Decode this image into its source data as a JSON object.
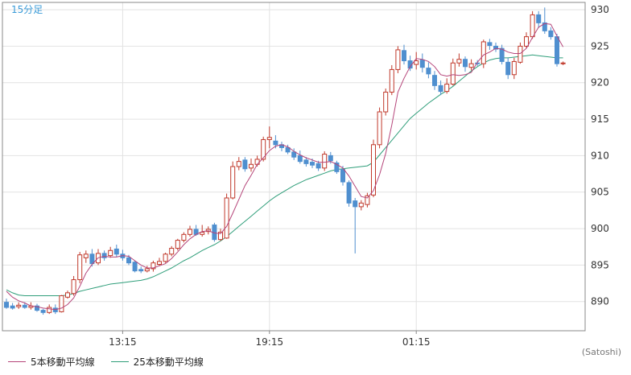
{
  "colors": {
    "up": "#c0392b",
    "down": "#4f8fcf",
    "ma5": "#b5457a",
    "ma25": "#2f9e7a",
    "grid": "#e2e2e2",
    "axis": "#888888",
    "label": "#333333",
    "timeframe": "#3a9bd8"
  },
  "chart_data": {
    "type": "candlestick",
    "timeframe_label": "15分足",
    "credit": "(Satoshi)",
    "legend": [
      {
        "name": "5本移動平均線",
        "color": "#b5457a"
      },
      {
        "name": "25本移動平均線",
        "color": "#2f9e7a"
      }
    ],
    "ylim": [
      886,
      931
    ],
    "y_ticks": [
      890,
      895,
      900,
      905,
      910,
      915,
      920,
      925,
      930
    ],
    "x_ticks": [
      {
        "label": "13:15",
        "index": 19
      },
      {
        "label": "19:15",
        "index": 43
      },
      {
        "label": "01:15",
        "index": 67
      }
    ],
    "candles": [
      [
        889.9,
        889.2,
        890.4,
        889.0
      ],
      [
        889.4,
        889.1,
        889.8,
        888.9
      ],
      [
        889.3,
        889.5,
        889.9,
        889.0
      ],
      [
        889.5,
        889.2,
        889.9,
        889.0
      ],
      [
        889.2,
        889.4,
        889.9,
        888.9
      ],
      [
        889.4,
        888.8,
        889.7,
        888.6
      ],
      [
        888.8,
        888.5,
        889.0,
        888.2
      ],
      [
        888.5,
        889.2,
        889.6,
        888.3
      ],
      [
        889.1,
        888.6,
        889.6,
        888.3
      ],
      [
        888.6,
        890.8,
        890.9,
        888.5
      ],
      [
        890.6,
        891.2,
        891.5,
        890.4
      ],
      [
        891.1,
        893.0,
        893.5,
        890.8
      ],
      [
        893.0,
        896.4,
        896.8,
        892.5
      ],
      [
        896.0,
        896.5,
        897.0,
        895.3
      ],
      [
        896.5,
        895.2,
        897.2,
        894.8
      ],
      [
        895.3,
        896.6,
        897.2,
        895.0
      ],
      [
        896.6,
        896.0,
        897.0,
        895.6
      ],
      [
        896.3,
        897.0,
        897.5,
        896.0
      ],
      [
        897.2,
        896.5,
        897.8,
        896.1
      ],
      [
        896.5,
        896.0,
        897.1,
        895.6
      ],
      [
        896.0,
        895.3,
        896.4,
        895.0
      ],
      [
        895.4,
        894.2,
        895.6,
        894.0
      ],
      [
        894.4,
        894.2,
        894.8,
        893.9
      ],
      [
        894.2,
        894.5,
        894.9,
        894.0
      ],
      [
        894.5,
        895.3,
        895.6,
        894.1
      ],
      [
        895.1,
        895.5,
        896.0,
        894.9
      ],
      [
        895.5,
        896.5,
        896.7,
        895.3
      ],
      [
        896.5,
        897.3,
        897.6,
        896.2
      ],
      [
        897.3,
        898.4,
        898.6,
        897.0
      ],
      [
        898.4,
        899.2,
        899.5,
        898.1
      ],
      [
        899.2,
        899.9,
        900.4,
        898.9
      ],
      [
        899.9,
        899.2,
        900.5,
        899.0
      ],
      [
        899.2,
        899.5,
        900.5,
        898.9
      ],
      [
        899.6,
        899.9,
        900.3,
        899.2
      ],
      [
        900.5,
        898.5,
        900.8,
        898.2
      ],
      [
        898.5,
        899.5,
        900.0,
        898.3
      ],
      [
        898.7,
        904.2,
        904.8,
        898.6
      ],
      [
        904.2,
        908.5,
        909.2,
        904.0
      ],
      [
        908.5,
        909.2,
        909.8,
        908.0
      ],
      [
        909.4,
        908.2,
        909.8,
        907.8
      ],
      [
        908.3,
        908.8,
        909.6,
        907.8
      ],
      [
        908.8,
        909.5,
        910.0,
        908.5
      ],
      [
        909.5,
        912.2,
        912.6,
        909.2
      ],
      [
        912.2,
        912.5,
        914.0,
        911.0
      ],
      [
        912.0,
        911.5,
        912.8,
        911.0
      ],
      [
        911.5,
        911.1,
        911.9,
        910.6
      ],
      [
        911.1,
        910.5,
        911.5,
        910.2
      ],
      [
        910.5,
        909.8,
        911.0,
        909.4
      ],
      [
        910.0,
        909.2,
        910.7,
        908.9
      ],
      [
        909.4,
        908.9,
        909.8,
        908.5
      ],
      [
        909.1,
        908.7,
        909.6,
        908.3
      ],
      [
        908.9,
        908.3,
        909.3,
        907.9
      ],
      [
        908.3,
        910.2,
        910.6,
        907.9
      ],
      [
        910.0,
        909.3,
        910.5,
        908.9
      ],
      [
        909.0,
        907.8,
        909.3,
        907.5
      ],
      [
        908.1,
        906.4,
        908.6,
        905.9
      ],
      [
        906.3,
        903.5,
        906.6,
        903.0
      ],
      [
        903.8,
        903.0,
        904.2,
        896.6
      ],
      [
        903.0,
        903.5,
        903.9,
        902.5
      ],
      [
        903.3,
        904.5,
        904.9,
        902.9
      ],
      [
        904.6,
        911.5,
        912.2,
        904.3
      ],
      [
        911.5,
        916.0,
        916.6,
        911.0
      ],
      [
        916.0,
        918.7,
        919.2,
        915.5
      ],
      [
        918.7,
        921.8,
        922.4,
        918.3
      ],
      [
        921.8,
        924.5,
        925.0,
        921.3
      ],
      [
        924.4,
        923.0,
        925.2,
        922.5
      ],
      [
        923.0,
        922.0,
        923.7,
        921.6
      ],
      [
        922.5,
        923.0,
        924.2,
        921.8
      ],
      [
        923.1,
        922.1,
        924.0,
        921.4
      ],
      [
        922.0,
        921.2,
        922.8,
        920.6
      ],
      [
        921.0,
        919.6,
        921.6,
        919.0
      ],
      [
        919.6,
        918.8,
        920.3,
        918.3
      ],
      [
        918.8,
        919.8,
        920.6,
        918.5
      ],
      [
        919.8,
        922.7,
        923.3,
        919.6
      ],
      [
        922.7,
        923.2,
        924.0,
        922.2
      ],
      [
        923.2,
        922.2,
        923.6,
        921.5
      ],
      [
        922.1,
        922.6,
        923.2,
        921.7
      ],
      [
        922.7,
        922.6,
        923.1,
        922.3
      ],
      [
        922.6,
        925.6,
        925.9,
        922.0
      ],
      [
        925.5,
        925.1,
        926.0,
        924.5
      ],
      [
        925.0,
        924.6,
        925.5,
        924.2
      ],
      [
        924.7,
        922.9,
        925.2,
        922.5
      ],
      [
        922.8,
        921.1,
        923.4,
        920.5
      ],
      [
        921.1,
        922.9,
        923.4,
        920.5
      ],
      [
        922.8,
        925.0,
        925.5,
        922.6
      ],
      [
        925.0,
        926.3,
        926.9,
        924.7
      ],
      [
        926.3,
        929.3,
        929.8,
        926.0
      ],
      [
        929.3,
        928.2,
        929.8,
        927.5
      ],
      [
        928.2,
        927.1,
        930.3,
        926.7
      ],
      [
        927.1,
        926.3,
        927.6,
        925.9
      ],
      [
        926.3,
        922.6,
        926.7,
        922.2
      ],
      [
        922.6,
        922.7,
        922.9,
        922.4
      ]
    ],
    "ma5": [
      891.4,
      890.6,
      890.1,
      889.8,
      889.4,
      889.3,
      889.1,
      889.0,
      888.9,
      889.1,
      889.6,
      890.5,
      892.1,
      893.9,
      895.1,
      896.0,
      896.2,
      896.1,
      896.1,
      896.3,
      896.2,
      895.6,
      895.0,
      894.6,
      894.6,
      894.9,
      895.2,
      895.9,
      896.8,
      897.8,
      898.6,
      899.2,
      899.6,
      899.7,
      899.4,
      899.3,
      900.3,
      902.1,
      904.0,
      905.9,
      907.3,
      908.8,
      909.7,
      910.7,
      911.3,
      911.5,
      911.2,
      910.6,
      910.1,
      909.7,
      909.4,
      909.1,
      909.1,
      909.2,
      908.8,
      908.3,
      907.2,
      905.8,
      904.4,
      904.2,
      905.2,
      907.4,
      910.3,
      914.2,
      918.7,
      920.6,
      922.2,
      923.3,
      923.2,
      922.9,
      922.2,
      921.1,
      920.9,
      921.1,
      921.0,
      921.1,
      921.4,
      922.8,
      923.8,
      924.2,
      924.7,
      924.6,
      924.2,
      924.0,
      924.0,
      924.7,
      926.2,
      927.6,
      928.1,
      928.0,
      926.4,
      924.9
    ],
    "ma25": [
      891.6,
      891.2,
      890.9,
      890.8,
      890.8,
      890.8,
      890.8,
      890.8,
      890.8,
      890.8,
      890.9,
      891.1,
      891.4,
      891.6,
      891.8,
      892.0,
      892.2,
      892.4,
      892.5,
      892.6,
      892.7,
      892.8,
      892.9,
      893.1,
      893.4,
      893.8,
      894.2,
      894.6,
      895.1,
      895.6,
      896.0,
      896.5,
      897.0,
      897.4,
      897.8,
      898.3,
      898.9,
      899.6,
      900.3,
      901.0,
      901.7,
      902.4,
      903.1,
      903.8,
      904.4,
      904.9,
      905.4,
      905.9,
      906.3,
      906.7,
      907.0,
      907.3,
      907.6,
      907.9,
      908.1,
      908.2,
      908.3,
      908.4,
      908.5,
      908.6,
      909.1,
      910.1,
      911.1,
      912.1,
      913.1,
      914.1,
      915.1,
      915.8,
      916.5,
      917.2,
      917.8,
      918.4,
      918.9,
      919.5,
      920.2,
      920.9,
      921.6,
      922.2,
      922.7,
      923.1,
      923.3,
      923.4,
      923.4,
      923.5,
      923.6,
      923.7,
      923.8,
      923.7,
      923.6,
      923.5,
      923.4,
      923.4
    ]
  }
}
